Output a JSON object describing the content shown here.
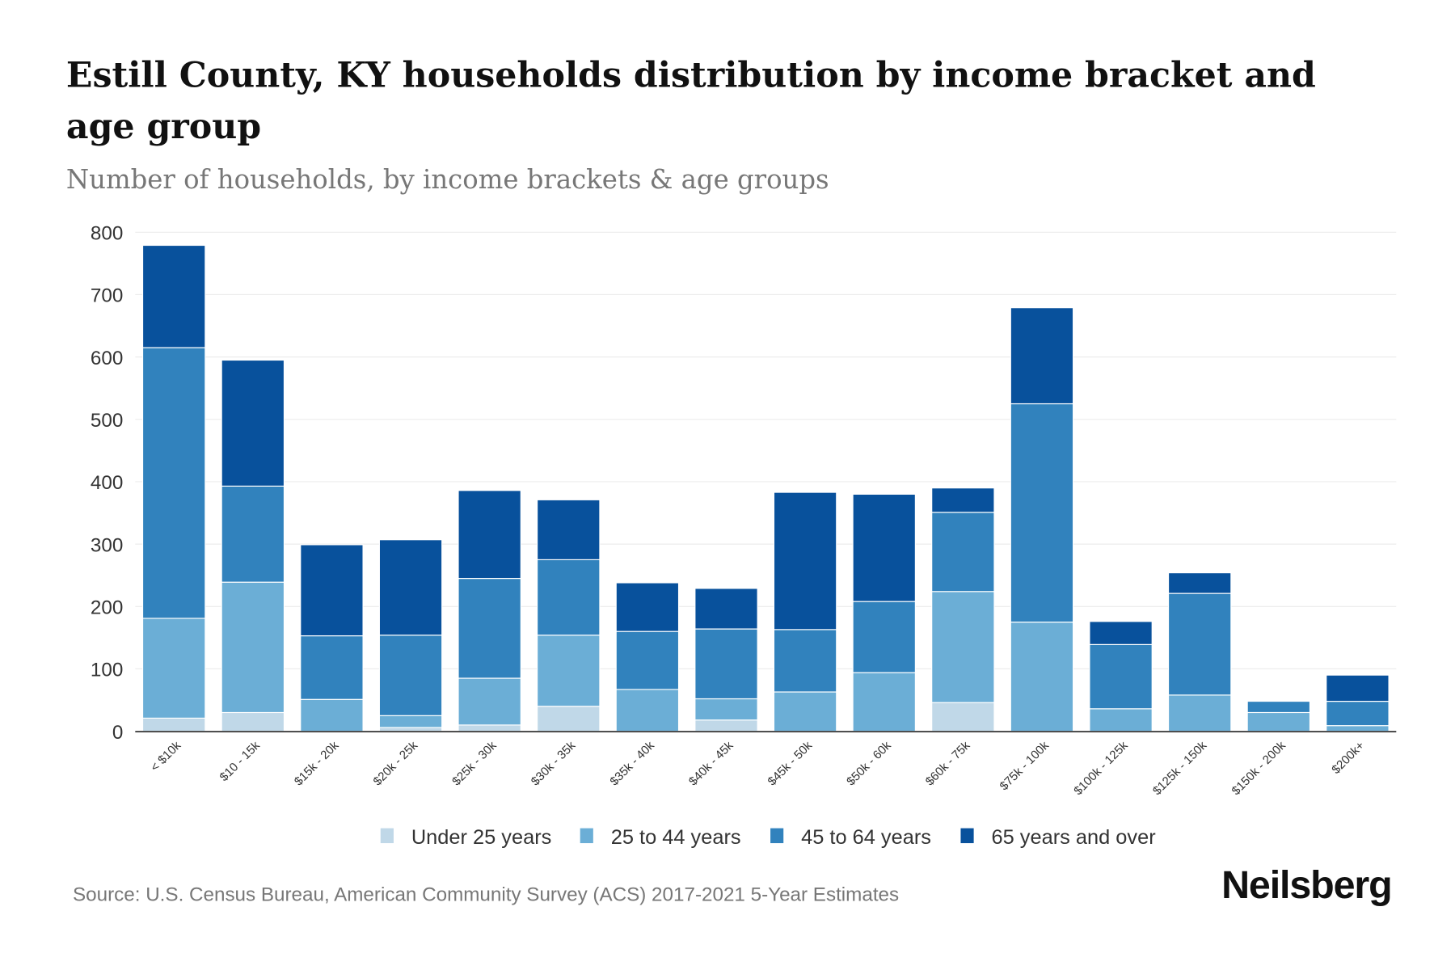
{
  "chart_data": {
    "type": "bar",
    "stacked": true,
    "title": "Estill County, KY households distribution by income bracket and age group",
    "title_lines": [
      "Estill County, KY households distribution by income bracket and",
      "age group"
    ],
    "subtitle": "Number of households, by income brackets & age groups",
    "xlabel": "",
    "ylabel": "",
    "ylim": [
      0,
      800
    ],
    "yticks": [
      "0",
      "100",
      "200",
      "300",
      "400",
      "500",
      "600",
      "700",
      "800"
    ],
    "grid": true,
    "legend_position": "bottom",
    "categories": [
      "< $10k",
      "$10 - 15k",
      "$15k - 20k",
      "$20k - 25k",
      "$25k - 30k",
      "$30k - 35k",
      "$35k - 40k",
      "$40k - 45k",
      "$45k - 50k",
      "$50k - 60k",
      "$60k - 75k",
      "$75k - 100k",
      "$100k - 125k",
      "$125k - 150k",
      "$150k - 200k",
      "$200k+"
    ],
    "series": [
      {
        "name": "Under 25 years",
        "color": "#c0d8e8",
        "values": [
          21,
          30,
          0,
          6,
          10,
          40,
          0,
          18,
          0,
          0,
          46,
          0,
          0,
          0,
          0,
          0
        ]
      },
      {
        "name": "25 to 44 years",
        "color": "#6baed6",
        "values": [
          160,
          209,
          51,
          19,
          75,
          114,
          67,
          34,
          63,
          94,
          178,
          175,
          36,
          58,
          30,
          9
        ]
      },
      {
        "name": "45 to 64 years",
        "color": "#3182bd",
        "values": [
          434,
          154,
          102,
          129,
          160,
          121,
          93,
          112,
          100,
          114,
          127,
          350,
          103,
          163,
          18,
          39
        ]
      },
      {
        "name": "65 years and over",
        "color": "#08519c",
        "values": [
          164,
          202,
          146,
          153,
          141,
          96,
          78,
          65,
          220,
          172,
          39,
          154,
          37,
          33,
          0,
          42
        ]
      }
    ]
  },
  "footer": {
    "source": "Source: U.S. Census Bureau, American Community Survey (ACS) 2017-2021 5-Year Estimates",
    "logo": "Neilsberg"
  }
}
